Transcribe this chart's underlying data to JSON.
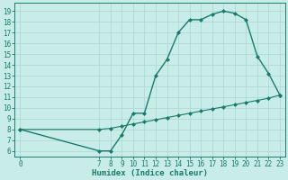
{
  "xlabel": "Humidex (Indice chaleur)",
  "background_color": "#c8ece8",
  "line_color": "#1a7a6e",
  "grid_color": "#b0d8d4",
  "curve1_x": [
    0,
    7,
    8,
    9,
    10,
    11,
    12,
    13,
    14,
    15,
    16,
    17,
    18,
    19,
    20,
    21,
    22,
    23
  ],
  "curve1_y": [
    8.0,
    6.0,
    6.0,
    7.5,
    9.5,
    9.5,
    13.0,
    14.5,
    17.0,
    18.2,
    18.2,
    18.7,
    19.0,
    18.8,
    18.2,
    14.8,
    13.2,
    11.2
  ],
  "curve2_x": [
    0,
    7,
    8,
    9,
    10,
    11,
    12,
    13,
    14,
    15,
    16,
    17,
    18,
    19,
    20,
    21,
    22,
    23
  ],
  "curve2_y": [
    8.0,
    8.0,
    8.1,
    8.3,
    8.5,
    8.7,
    8.9,
    9.1,
    9.3,
    9.5,
    9.7,
    9.9,
    10.1,
    10.3,
    10.5,
    10.7,
    10.9,
    11.2
  ],
  "yticks": [
    6,
    7,
    8,
    9,
    10,
    11,
    12,
    13,
    14,
    15,
    16,
    17,
    18,
    19
  ],
  "xticks": [
    0,
    7,
    8,
    9,
    10,
    11,
    12,
    13,
    14,
    15,
    16,
    17,
    18,
    19,
    20,
    21,
    22,
    23
  ],
  "xlim": [
    -0.5,
    23.5
  ],
  "ylim": [
    5.5,
    19.8
  ],
  "marker": "D",
  "marker_size": 2.0,
  "linewidth1": 1.0,
  "linewidth2": 0.8
}
